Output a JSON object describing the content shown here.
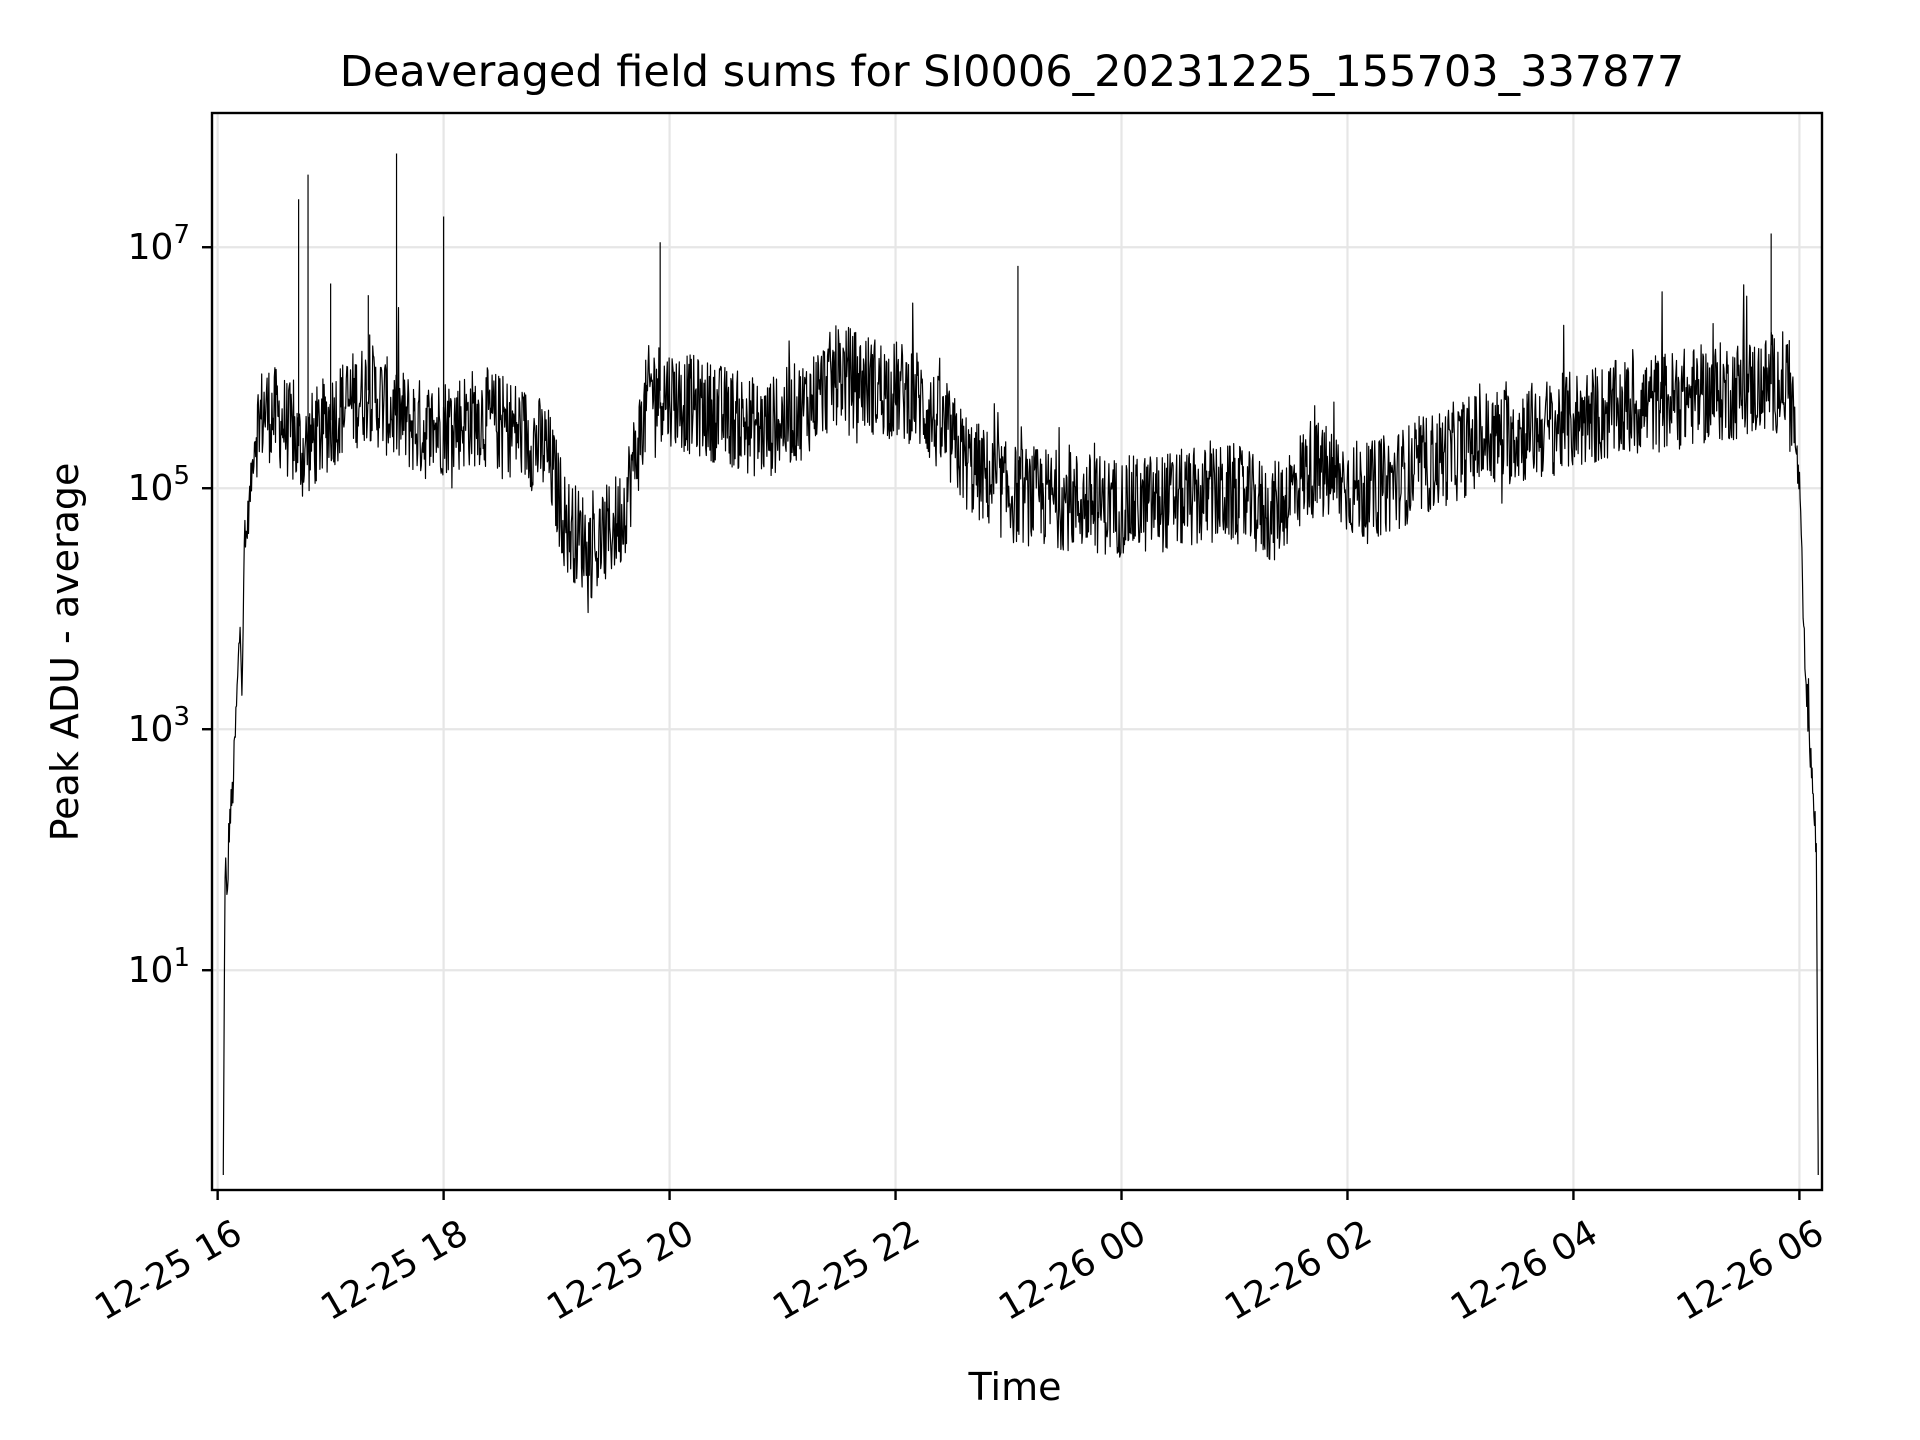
{
  "chart_data": {
    "type": "line",
    "title": "Deaveraged field sums for SI0006_20231225_155703_337877",
    "xlabel": "Time",
    "ylabel": "Peak ADU - average",
    "xscale": "time",
    "yscale": "log",
    "xlim": [
      "2023-12-25 15:57",
      "2023-12-26 06:12"
    ],
    "ylim": [
      0.15,
      130000000
    ],
    "x_ticks": [
      {
        "value": "2023-12-25 16:00",
        "label": "12-25 16"
      },
      {
        "value": "2023-12-25 18:00",
        "label": "12-25 18"
      },
      {
        "value": "2023-12-25 20:00",
        "label": "12-25 20"
      },
      {
        "value": "2023-12-25 22:00",
        "label": "12-25 22"
      },
      {
        "value": "2023-12-26 00:00",
        "label": "12-26 00"
      },
      {
        "value": "2023-12-26 02:00",
        "label": "12-26 02"
      },
      {
        "value": "2023-12-26 04:00",
        "label": "12-26 04"
      },
      {
        "value": "2023-12-26 06:00",
        "label": "12-26 06"
      }
    ],
    "y_ticks": [
      {
        "value": 10,
        "base": "10",
        "exp": "1"
      },
      {
        "value": 1000,
        "base": "10",
        "exp": "3"
      },
      {
        "value": 100000,
        "base": "10",
        "exp": "5"
      },
      {
        "value": 10000000,
        "base": "10",
        "exp": "7"
      }
    ],
    "x_tick_rotation": 30,
    "grid": true,
    "legend": "none",
    "line_color": "#000000",
    "series": [
      {
        "points": [
          [
            "2023-12-25 16:03",
            0.2
          ],
          [
            "2023-12-25 16:04",
            100
          ],
          [
            "2023-12-25 16:05",
            30
          ],
          [
            "2023-12-25 16:06",
            150
          ],
          [
            "2023-12-25 16:08",
            300
          ],
          [
            "2023-12-25 16:10",
            1500
          ],
          [
            "2023-12-25 16:12",
            8000
          ],
          [
            "2023-12-25 16:13",
            2500
          ],
          [
            "2023-12-25 16:14",
            25000
          ],
          [
            "2023-12-25 16:17",
            80000
          ],
          [
            "2023-12-25 16:20",
            300000
          ],
          [
            "2023-12-25 16:25",
            450000
          ],
          [
            "2023-12-25 16:35",
            350000
          ],
          [
            "2023-12-25 16:45",
            200000
          ],
          [
            "2023-12-25 16:55",
            300000
          ],
          [
            "2023-12-25 17:05",
            450000
          ],
          [
            "2023-12-25 17:20",
            650000
          ],
          [
            "2023-12-25 17:35",
            400000
          ],
          [
            "2023-12-25 17:50",
            300000
          ],
          [
            "2023-12-25 18:05",
            350000
          ],
          [
            "2023-12-25 18:20",
            400000
          ],
          [
            "2023-12-25 18:40",
            300000
          ],
          [
            "2023-12-25 18:55",
            200000
          ],
          [
            "2023-12-25 19:05",
            50000
          ],
          [
            "2023-12-25 19:20",
            30000
          ],
          [
            "2023-12-25 19:35",
            60000
          ],
          [
            "2023-12-25 19:50",
            700000
          ],
          [
            "2023-12-25 20:10",
            500000
          ],
          [
            "2023-12-25 20:30",
            400000
          ],
          [
            "2023-12-25 20:50",
            300000
          ],
          [
            "2023-12-25 21:10",
            450000
          ],
          [
            "2023-12-25 21:30",
            900000
          ],
          [
            "2023-12-25 21:50",
            700000
          ],
          [
            "2023-12-25 22:10",
            600000
          ],
          [
            "2023-12-25 22:25",
            300000
          ],
          [
            "2023-12-25 22:40",
            150000
          ],
          [
            "2023-12-25 23:00",
            90000
          ],
          [
            "2023-12-25 23:30",
            80000
          ],
          [
            "2023-12-26 00:00",
            70000
          ],
          [
            "2023-12-26 00:30",
            80000
          ],
          [
            "2023-12-26 01:00",
            90000
          ],
          [
            "2023-12-26 01:20",
            60000
          ],
          [
            "2023-12-26 01:40",
            150000
          ],
          [
            "2023-12-26 02:10",
            90000
          ],
          [
            "2023-12-26 02:40",
            150000
          ],
          [
            "2023-12-26 03:10",
            250000
          ],
          [
            "2023-12-26 03:40",
            300000
          ],
          [
            "2023-12-26 04:10",
            400000
          ],
          [
            "2023-12-26 04:40",
            500000
          ],
          [
            "2023-12-26 05:10",
            600000
          ],
          [
            "2023-12-26 05:40",
            700000
          ],
          [
            "2023-12-26 05:55",
            800000
          ],
          [
            "2023-12-26 06:00",
            100000
          ],
          [
            "2023-12-26 06:03",
            3000
          ],
          [
            "2023-12-26 06:06",
            600
          ],
          [
            "2023-12-26 06:09",
            100
          ],
          [
            "2023-12-26 06:10",
            0.2
          ]
        ]
      }
    ],
    "spikes": [
      {
        "x": "2023-12-25 16:43",
        "y": 25000000
      },
      {
        "x": "2023-12-25 16:48",
        "y": 40000000
      },
      {
        "x": "2023-12-25 17:00",
        "y": 5000000
      },
      {
        "x": "2023-12-25 17:20",
        "y": 4000000
      },
      {
        "x": "2023-12-25 17:35",
        "y": 60000000
      },
      {
        "x": "2023-12-25 18:00",
        "y": 18000000
      },
      {
        "x": "2023-12-25 19:55",
        "y": 11000000
      },
      {
        "x": "2023-12-25 23:05",
        "y": 7000000
      },
      {
        "x": "2023-12-26 05:45",
        "y": 13000000
      }
    ]
  }
}
